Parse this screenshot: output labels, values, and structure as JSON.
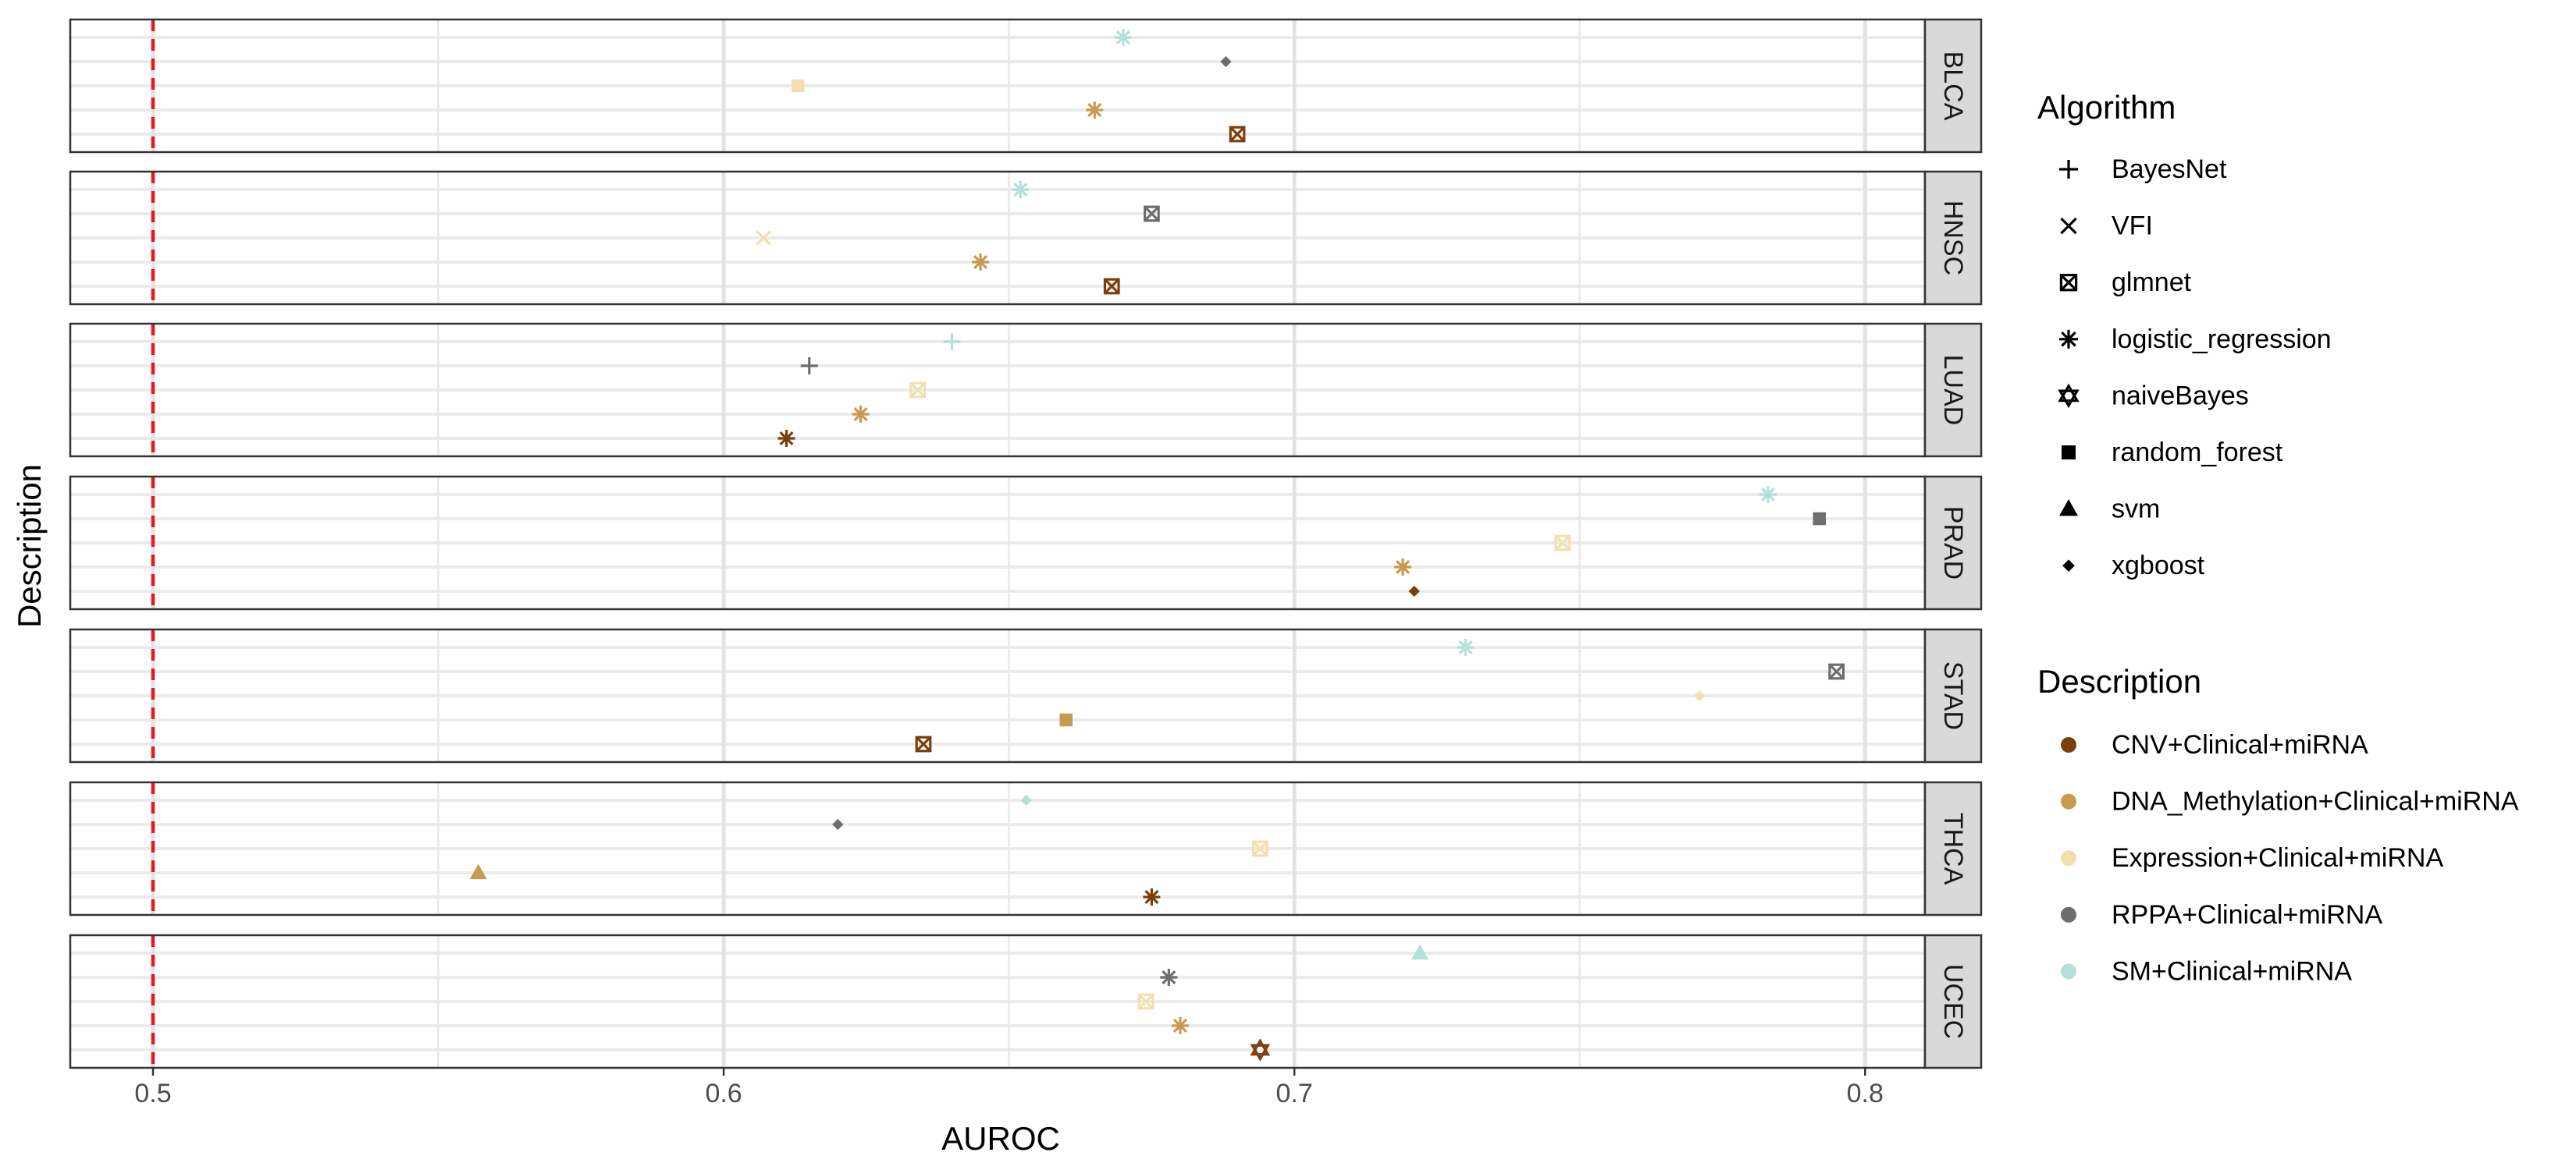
{
  "chart_data": {
    "type": "scatter",
    "title": "",
    "xlabel": "AUROC",
    "ylabel": "Description",
    "xlim": [
      0.4855,
      0.8105
    ],
    "x_ticks": [
      0.5,
      0.6,
      0.7,
      0.8
    ],
    "x_tick_labels": [
      "0.5",
      "0.6",
      "0.7",
      "0.8"
    ],
    "reference_line": {
      "x": 0.5,
      "style": "dashed",
      "color": "#e41a1c"
    },
    "facets": [
      "BLCA",
      "HNSC",
      "LUAD",
      "PRAD",
      "STAD",
      "THCA",
      "UCEC"
    ],
    "description_levels": [
      "CNV+Clinical+miRNA",
      "DNA_Methylation+Clinical+miRNA",
      "Expression+Clinical+miRNA",
      "RPPA+Clinical+miRNA",
      "SM+Clinical+miRNA"
    ],
    "colors": {
      "CNV+Clinical+miRNA": "#7b3f0c",
      "DNA_Methylation+Clinical+miRNA": "#c89a4e",
      "Expression+Clinical+miRNA": "#f3dfae",
      "RPPA+Clinical+miRNA": "#6e6e6e",
      "SM+Clinical+miRNA": "#b3e0d9"
    },
    "algorithms": [
      "BayesNet",
      "VFI",
      "glmnet",
      "logistic_regression",
      "naiveBayes",
      "random_forest",
      "svm",
      "xgboost"
    ],
    "legend_algorithm_title": "Algorithm",
    "legend_description_title": "Description",
    "legend_position": "right",
    "grid": true,
    "points": [
      {
        "facet": "BLCA",
        "description": "SM+Clinical+miRNA",
        "algorithm": "logistic_regression",
        "x": 0.67
      },
      {
        "facet": "BLCA",
        "description": "RPPA+Clinical+miRNA",
        "algorithm": "xgboost",
        "x": 0.688
      },
      {
        "facet": "BLCA",
        "description": "Expression+Clinical+miRNA",
        "algorithm": "random_forest",
        "x": 0.613
      },
      {
        "facet": "BLCA",
        "description": "DNA_Methylation+Clinical+miRNA",
        "algorithm": "logistic_regression",
        "x": 0.665
      },
      {
        "facet": "BLCA",
        "description": "CNV+Clinical+miRNA",
        "algorithm": "glmnet",
        "x": 0.69
      },
      {
        "facet": "HNSC",
        "description": "SM+Clinical+miRNA",
        "algorithm": "logistic_regression",
        "x": 0.652
      },
      {
        "facet": "HNSC",
        "description": "RPPA+Clinical+miRNA",
        "algorithm": "glmnet",
        "x": 0.675
      },
      {
        "facet": "HNSC",
        "description": "Expression+Clinical+miRNA",
        "algorithm": "VFI",
        "x": 0.607
      },
      {
        "facet": "HNSC",
        "description": "DNA_Methylation+Clinical+miRNA",
        "algorithm": "logistic_regression",
        "x": 0.645
      },
      {
        "facet": "HNSC",
        "description": "CNV+Clinical+miRNA",
        "algorithm": "glmnet",
        "x": 0.668
      },
      {
        "facet": "LUAD",
        "description": "SM+Clinical+miRNA",
        "algorithm": "BayesNet",
        "x": 0.64
      },
      {
        "facet": "LUAD",
        "description": "RPPA+Clinical+miRNA",
        "algorithm": "BayesNet",
        "x": 0.615
      },
      {
        "facet": "LUAD",
        "description": "Expression+Clinical+miRNA",
        "algorithm": "glmnet",
        "x": 0.634
      },
      {
        "facet": "LUAD",
        "description": "DNA_Methylation+Clinical+miRNA",
        "algorithm": "logistic_regression",
        "x": 0.624
      },
      {
        "facet": "LUAD",
        "description": "CNV+Clinical+miRNA",
        "algorithm": "logistic_regression",
        "x": 0.611
      },
      {
        "facet": "PRAD",
        "description": "SM+Clinical+miRNA",
        "algorithm": "logistic_regression",
        "x": 0.783
      },
      {
        "facet": "PRAD",
        "description": "RPPA+Clinical+miRNA",
        "algorithm": "random_forest",
        "x": 0.792
      },
      {
        "facet": "PRAD",
        "description": "Expression+Clinical+miRNA",
        "algorithm": "glmnet",
        "x": 0.747
      },
      {
        "facet": "PRAD",
        "description": "DNA_Methylation+Clinical+miRNA",
        "algorithm": "logistic_regression",
        "x": 0.719
      },
      {
        "facet": "PRAD",
        "description": "CNV+Clinical+miRNA",
        "algorithm": "xgboost",
        "x": 0.721
      },
      {
        "facet": "STAD",
        "description": "SM+Clinical+miRNA",
        "algorithm": "logistic_regression",
        "x": 0.73
      },
      {
        "facet": "STAD",
        "description": "RPPA+Clinical+miRNA",
        "algorithm": "glmnet",
        "x": 0.795
      },
      {
        "facet": "STAD",
        "description": "Expression+Clinical+miRNA",
        "algorithm": "xgboost",
        "x": 0.771
      },
      {
        "facet": "STAD",
        "description": "DNA_Methylation+Clinical+miRNA",
        "algorithm": "random_forest",
        "x": 0.66
      },
      {
        "facet": "STAD",
        "description": "CNV+Clinical+miRNA",
        "algorithm": "glmnet",
        "x": 0.635
      },
      {
        "facet": "THCA",
        "description": "SM+Clinical+miRNA",
        "algorithm": "xgboost",
        "x": 0.653
      },
      {
        "facet": "THCA",
        "description": "RPPA+Clinical+miRNA",
        "algorithm": "xgboost",
        "x": 0.62
      },
      {
        "facet": "THCA",
        "description": "Expression+Clinical+miRNA",
        "algorithm": "glmnet",
        "x": 0.694
      },
      {
        "facet": "THCA",
        "description": "DNA_Methylation+Clinical+miRNA",
        "algorithm": "svm",
        "x": 0.557
      },
      {
        "facet": "THCA",
        "description": "CNV+Clinical+miRNA",
        "algorithm": "logistic_regression",
        "x": 0.675
      },
      {
        "facet": "UCEC",
        "description": "SM+Clinical+miRNA",
        "algorithm": "svm",
        "x": 0.722
      },
      {
        "facet": "UCEC",
        "description": "RPPA+Clinical+miRNA",
        "algorithm": "logistic_regression",
        "x": 0.678
      },
      {
        "facet": "UCEC",
        "description": "Expression+Clinical+miRNA",
        "algorithm": "glmnet",
        "x": 0.674
      },
      {
        "facet": "UCEC",
        "description": "DNA_Methylation+Clinical+miRNA",
        "algorithm": "logistic_regression",
        "x": 0.68
      },
      {
        "facet": "UCEC",
        "description": "CNV+Clinical+miRNA",
        "algorithm": "naiveBayes",
        "x": 0.694
      }
    ]
  }
}
